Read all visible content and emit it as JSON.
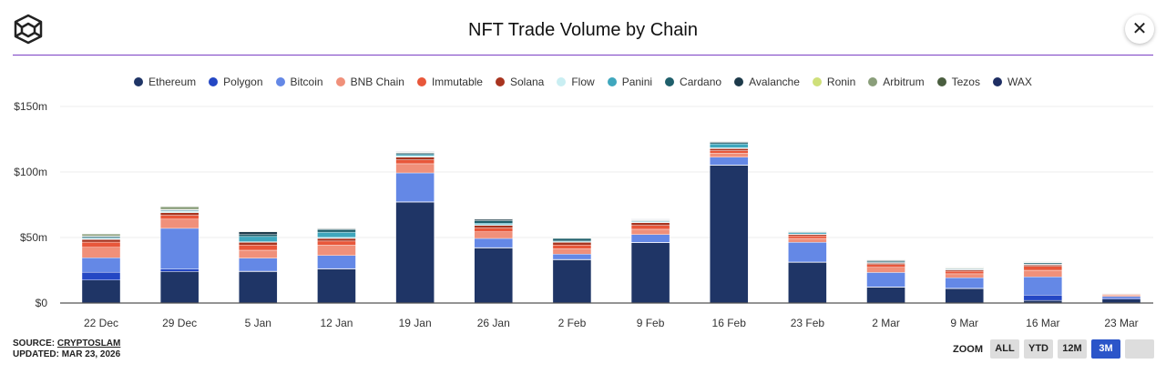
{
  "header": {
    "title": "NFT Trade Volume by Chain",
    "close_icon": "close-icon",
    "logo_icon": "cube-logo-icon"
  },
  "footer": {
    "source_prefix": "SOURCE: ",
    "source_link": "CRYPTOSLAM",
    "updated": "UPDATED: MAR 23, 2026"
  },
  "zoom": {
    "label": "ZOOM",
    "buttons": [
      "ALL",
      "YTD",
      "12M",
      "3M",
      ""
    ],
    "active": "3M"
  },
  "chart_data": {
    "type": "bar",
    "stacked": true,
    "title": "NFT Trade Volume by Chain",
    "categories": [
      "22 Dec",
      "29 Dec",
      "5 Jan",
      "12 Jan",
      "19 Jan",
      "26 Jan",
      "2 Feb",
      "9 Feb",
      "16 Feb",
      "23 Feb",
      "2 Mar",
      "9 Mar",
      "16 Mar",
      "23 Mar"
    ],
    "yticks": [
      "$0",
      "$50m",
      "$100m",
      "$150m"
    ],
    "ylim": [
      0,
      150
    ],
    "yunit": "$m",
    "grid": true,
    "legend": "top",
    "series": [
      {
        "name": "Ethereum",
        "color": "#1f3566",
        "values": [
          17.5,
          24,
          24,
          26,
          77,
          42,
          33,
          46,
          105,
          31,
          12,
          11,
          2,
          3
        ]
      },
      {
        "name": "Polygon",
        "color": "#2447c4",
        "values": [
          6,
          2,
          0.3,
          0.3,
          0.3,
          0.3,
          0.3,
          0.3,
          0.3,
          0.3,
          0.3,
          0.3,
          4,
          1
        ]
      },
      {
        "name": "Bitcoin",
        "color": "#6488e6",
        "values": [
          11,
          31,
          10,
          10,
          22,
          7,
          4,
          6,
          6,
          15,
          11,
          8,
          14,
          1
        ]
      },
      {
        "name": "BNB Chain",
        "color": "#f0907a",
        "values": [
          8,
          7,
          6,
          8,
          7,
          5,
          4,
          4,
          3,
          3,
          4,
          3,
          5,
          1
        ]
      },
      {
        "name": "Immutable",
        "color": "#e8573a",
        "values": [
          4,
          3,
          4,
          3,
          3,
          3,
          3,
          3,
          2,
          2,
          2,
          2,
          3,
          0.6
        ]
      },
      {
        "name": "Solana",
        "color": "#a8341f",
        "values": [
          2,
          2,
          2,
          2,
          2,
          2,
          2,
          2,
          1.5,
          1,
          1,
          1,
          1,
          0.3
        ]
      },
      {
        "name": "Flow",
        "color": "#c9eef2",
        "values": [
          0.7,
          1,
          0.5,
          0.8,
          1,
          0.6,
          0.5,
          0.5,
          0.7,
          0.4,
          0.3,
          0.3,
          0.3,
          0.1
        ]
      },
      {
        "name": "Panini",
        "color": "#3fa7bd",
        "values": [
          0.5,
          0.5,
          4,
          4,
          1,
          1,
          0.5,
          0.5,
          3,
          1,
          0.3,
          0.3,
          0.3,
          0.1
        ]
      },
      {
        "name": "Cardano",
        "color": "#1f5f6b",
        "values": [
          1,
          0.5,
          1.5,
          2,
          1,
          2,
          2,
          0.5,
          1,
          0.5,
          1,
          0.5,
          1,
          0.1
        ]
      },
      {
        "name": "Avalanche",
        "color": "#1d3a4a",
        "values": [
          0.3,
          0.3,
          2,
          0.5,
          0.5,
          1,
          0.3,
          0.3,
          0.5,
          0.3,
          0.5,
          0.3,
          0.3,
          0.1
        ]
      },
      {
        "name": "Ronin",
        "color": "#cfe07a",
        "values": [
          0.2,
          0.2,
          0.2,
          0.2,
          0.2,
          0.3,
          0.2,
          0.2,
          0.2,
          0.2,
          0.2,
          0.2,
          0.2,
          0.05
        ]
      },
      {
        "name": "Arbitrum",
        "color": "#8a9e7a",
        "values": [
          1.5,
          2,
          0.3,
          0.3,
          0.3,
          0.3,
          0.3,
          0.3,
          0.3,
          0.3,
          0.3,
          0.3,
          0.3,
          0.05
        ]
      },
      {
        "name": "Tezos",
        "color": "#4a5e3f",
        "values": [
          0.2,
          0.2,
          0.2,
          0.2,
          0.2,
          0.2,
          0.2,
          0.2,
          0.2,
          0.2,
          0.2,
          0.2,
          0.2,
          0.05
        ]
      },
      {
        "name": "WAX",
        "color": "#1e2e63",
        "values": [
          0.2,
          0.2,
          0.2,
          0.2,
          0.2,
          0.2,
          0.2,
          0.2,
          0.2,
          0.2,
          0.2,
          0.2,
          0.2,
          0.05
        ]
      }
    ]
  }
}
